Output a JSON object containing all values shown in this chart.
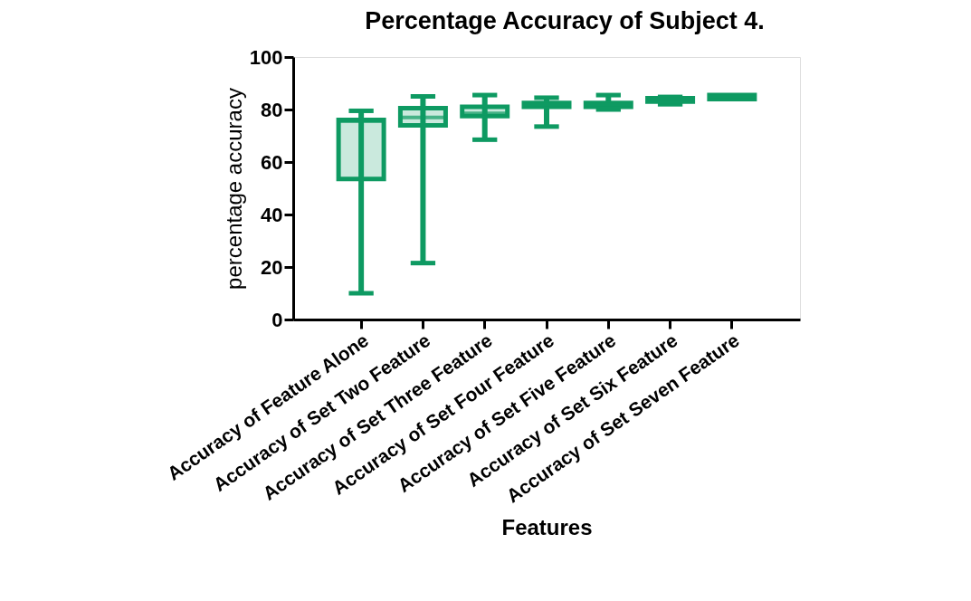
{
  "chart_data": {
    "type": "box",
    "title": "Percentage Accuracy of Subject  4.",
    "xlabel": "Features",
    "ylabel": "percentage accuracy",
    "categories": [
      "Accuracy of Feature Alone",
      "Accuracy of Set Two Feature",
      "Accuracy of Set Three Feature",
      "Accuracy of Set Four Feature",
      "Accuracy of Set Five Feature",
      "Accuracy of Set Six Feature",
      "Accuracy of Set Seven Feature"
    ],
    "series": [
      {
        "color": "#0e9a62",
        "boxes": [
          {
            "low": 10,
            "q1": 53.5,
            "median": 75.5,
            "q3": 76,
            "high": 79.5
          },
          {
            "low": 21.5,
            "q1": 74,
            "median": 77,
            "q3": 80.5,
            "high": 85
          },
          {
            "low": 68.5,
            "q1": 77.5,
            "median": 78.5,
            "q3": 81,
            "high": 85.5
          },
          {
            "low": 73.5,
            "q1": 81,
            "median": 82,
            "q3": 82.5,
            "high": 84.5
          },
          {
            "low": 80,
            "q1": 81,
            "median": 82,
            "q3": 82.5,
            "high": 85.5
          },
          {
            "low": 82,
            "q1": 83,
            "median": 84,
            "q3": 84.3,
            "high": 84.8
          },
          {
            "low": 84,
            "q1": 84,
            "median": 85,
            "q3": 85.5,
            "high": 85.5
          }
        ]
      }
    ],
    "ylim": [
      0,
      100
    ],
    "yticks": [
      0,
      20,
      40,
      60,
      80,
      100
    ],
    "grid": false
  }
}
